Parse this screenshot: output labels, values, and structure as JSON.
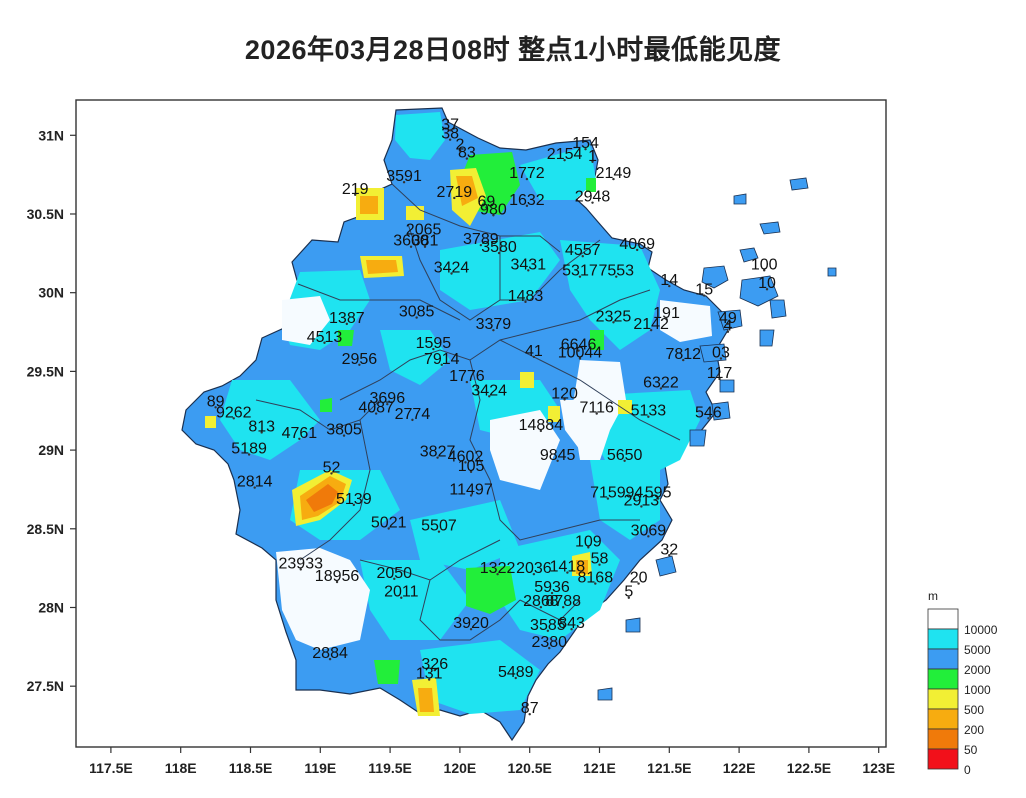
{
  "title": "2026年03月28日08时 整点1小时最低能见度",
  "map": {
    "lon_range": [
      117.25,
      123.05
    ],
    "lat_range": [
      27.12,
      31.23
    ],
    "x_ticks": [
      {
        "value": 117.5,
        "label": "117.5E"
      },
      {
        "value": 118,
        "label": "118E"
      },
      {
        "value": 118.5,
        "label": "118.5E"
      },
      {
        "value": 119,
        "label": "119E"
      },
      {
        "value": 119.5,
        "label": "119.5E"
      },
      {
        "value": 120,
        "label": "120E"
      },
      {
        "value": 120.5,
        "label": "120.5E"
      },
      {
        "value": 121,
        "label": "121E"
      },
      {
        "value": 121.5,
        "label": "121.5E"
      },
      {
        "value": 122,
        "label": "122E"
      },
      {
        "value": 122.5,
        "label": "122.5E"
      },
      {
        "value": 123,
        "label": "123E"
      }
    ],
    "y_ticks": [
      {
        "value": 31,
        "label": "31N"
      },
      {
        "value": 30.5,
        "label": "30.5N"
      },
      {
        "value": 30,
        "label": "30N"
      },
      {
        "value": 29.5,
        "label": "29.5N"
      },
      {
        "value": 29,
        "label": "29N"
      },
      {
        "value": 28.5,
        "label": "28.5N"
      },
      {
        "value": 28,
        "label": "28N"
      },
      {
        "value": 27.5,
        "label": "27.5N"
      }
    ]
  },
  "legend": {
    "unit": "m",
    "bins": [
      {
        "label": "10000",
        "color": "#ffffff"
      },
      {
        "label": "5000",
        "color": "#1fe3f0"
      },
      {
        "label": "2000",
        "color": "#3c9cf2"
      },
      {
        "label": "1000",
        "color": "#22ee3a"
      },
      {
        "label": "500",
        "color": "#f2ef34"
      },
      {
        "label": "200",
        "color": "#f7ac10"
      },
      {
        "label": "50",
        "color": "#f07a0a"
      },
      {
        "label": "0",
        "color": "#f2101a"
      }
    ]
  },
  "stations": [
    {
      "lon": 119.93,
      "lat": 31.07,
      "text": "37"
    },
    {
      "lon": 119.93,
      "lat": 31.01,
      "text": "38"
    },
    {
      "lon": 120.0,
      "lat": 30.94,
      "text": "2"
    },
    {
      "lon": 120.05,
      "lat": 30.89,
      "text": "83"
    },
    {
      "lon": 120.9,
      "lat": 30.95,
      "text": "154"
    },
    {
      "lon": 120.75,
      "lat": 30.88,
      "text": "2154"
    },
    {
      "lon": 120.95,
      "lat": 30.87,
      "text": "1"
    },
    {
      "lon": 119.6,
      "lat": 30.74,
      "text": "3591"
    },
    {
      "lon": 120.48,
      "lat": 30.76,
      "text": "1772"
    },
    {
      "lon": 121.1,
      "lat": 30.76,
      "text": "2149"
    },
    {
      "lon": 119.25,
      "lat": 30.66,
      "text": "219"
    },
    {
      "lon": 119.96,
      "lat": 30.64,
      "text": "2719"
    },
    {
      "lon": 120.19,
      "lat": 30.58,
      "text": "69"
    },
    {
      "lon": 120.24,
      "lat": 30.53,
      "text": "980"
    },
    {
      "lon": 120.48,
      "lat": 30.59,
      "text": "1632"
    },
    {
      "lon": 120.95,
      "lat": 30.61,
      "text": "2948"
    },
    {
      "lon": 119.74,
      "lat": 30.4,
      "text": "2065"
    },
    {
      "lon": 119.65,
      "lat": 30.33,
      "text": "3600"
    },
    {
      "lon": 119.75,
      "lat": 30.33,
      "text": "381"
    },
    {
      "lon": 120.15,
      "lat": 30.34,
      "text": "3789"
    },
    {
      "lon": 120.28,
      "lat": 30.29,
      "text": "3580"
    },
    {
      "lon": 120.88,
      "lat": 30.27,
      "text": "4557"
    },
    {
      "lon": 121.27,
      "lat": 30.31,
      "text": "4069"
    },
    {
      "lon": 119.94,
      "lat": 30.16,
      "text": "3424"
    },
    {
      "lon": 120.49,
      "lat": 30.18,
      "text": "3431"
    },
    {
      "lon": 120.86,
      "lat": 30.14,
      "text": "5317"
    },
    {
      "lon": 121.12,
      "lat": 30.14,
      "text": "7553"
    },
    {
      "lon": 121.5,
      "lat": 30.08,
      "text": "14"
    },
    {
      "lon": 122.18,
      "lat": 30.18,
      "text": "100"
    },
    {
      "lon": 122.2,
      "lat": 30.06,
      "text": "10"
    },
    {
      "lon": 121.75,
      "lat": 30.02,
      "text": "15"
    },
    {
      "lon": 120.47,
      "lat": 29.98,
      "text": "1483"
    },
    {
      "lon": 119.69,
      "lat": 29.88,
      "text": "3085"
    },
    {
      "lon": 121.1,
      "lat": 29.85,
      "text": "2325"
    },
    {
      "lon": 121.48,
      "lat": 29.87,
      "text": "191"
    },
    {
      "lon": 121.92,
      "lat": 29.84,
      "text": "49"
    },
    {
      "lon": 119.19,
      "lat": 29.84,
      "text": "1387"
    },
    {
      "lon": 120.24,
      "lat": 29.8,
      "text": "3379"
    },
    {
      "lon": 121.37,
      "lat": 29.8,
      "text": "2142"
    },
    {
      "lon": 121.92,
      "lat": 29.79,
      "text": "4"
    },
    {
      "lon": 119.03,
      "lat": 29.72,
      "text": "4513"
    },
    {
      "lon": 120.85,
      "lat": 29.67,
      "text": "6646"
    },
    {
      "lon": 119.81,
      "lat": 29.68,
      "text": "1595"
    },
    {
      "lon": 120.53,
      "lat": 29.63,
      "text": "41"
    },
    {
      "lon": 120.86,
      "lat": 29.62,
      "text": "10044"
    },
    {
      "lon": 121.6,
      "lat": 29.61,
      "text": "7812"
    },
    {
      "lon": 121.87,
      "lat": 29.62,
      "text": "03"
    },
    {
      "lon": 119.28,
      "lat": 29.58,
      "text": "2956"
    },
    {
      "lon": 119.87,
      "lat": 29.58,
      "text": "7914"
    },
    {
      "lon": 121.86,
      "lat": 29.49,
      "text": "117"
    },
    {
      "lon": 120.05,
      "lat": 29.47,
      "text": "1776"
    },
    {
      "lon": 121.44,
      "lat": 29.43,
      "text": "6322"
    },
    {
      "lon": 120.21,
      "lat": 29.38,
      "text": "3424"
    },
    {
      "lon": 120.75,
      "lat": 29.36,
      "text": "120"
    },
    {
      "lon": 118.25,
      "lat": 29.31,
      "text": "89"
    },
    {
      "lon": 119.48,
      "lat": 29.33,
      "text": "3696"
    },
    {
      "lon": 119.4,
      "lat": 29.27,
      "text": "4087"
    },
    {
      "lon": 120.98,
      "lat": 29.27,
      "text": "7116"
    },
    {
      "lon": 121.35,
      "lat": 29.25,
      "text": "5133"
    },
    {
      "lon": 121.78,
      "lat": 29.24,
      "text": "546"
    },
    {
      "lon": 118.38,
      "lat": 29.24,
      "text": "9262"
    },
    {
      "lon": 119.66,
      "lat": 29.23,
      "text": "2774"
    },
    {
      "lon": 120.58,
      "lat": 29.16,
      "text": "14884"
    },
    {
      "lon": 118.58,
      "lat": 29.15,
      "text": "813"
    },
    {
      "lon": 119.17,
      "lat": 29.13,
      "text": "3805"
    },
    {
      "lon": 118.85,
      "lat": 29.11,
      "text": "4761"
    },
    {
      "lon": 118.49,
      "lat": 29.01,
      "text": "5189"
    },
    {
      "lon": 119.84,
      "lat": 28.99,
      "text": "3827"
    },
    {
      "lon": 120.04,
      "lat": 28.96,
      "text": "4602"
    },
    {
      "lon": 120.7,
      "lat": 28.97,
      "text": "9845"
    },
    {
      "lon": 121.18,
      "lat": 28.97,
      "text": "5650"
    },
    {
      "lon": 120.08,
      "lat": 28.9,
      "text": "105"
    },
    {
      "lon": 119.08,
      "lat": 28.89,
      "text": "52"
    },
    {
      "lon": 118.53,
      "lat": 28.8,
      "text": "2814"
    },
    {
      "lon": 120.08,
      "lat": 28.75,
      "text": "11497"
    },
    {
      "lon": 121.06,
      "lat": 28.73,
      "text": "7159"
    },
    {
      "lon": 121.25,
      "lat": 28.73,
      "text": "94"
    },
    {
      "lon": 121.42,
      "lat": 28.73,
      "text": "595"
    },
    {
      "lon": 121.3,
      "lat": 28.68,
      "text": "2913"
    },
    {
      "lon": 119.24,
      "lat": 28.69,
      "text": "5139"
    },
    {
      "lon": 119.49,
      "lat": 28.54,
      "text": "5021"
    },
    {
      "lon": 119.85,
      "lat": 28.52,
      "text": "5507"
    },
    {
      "lon": 121.35,
      "lat": 28.49,
      "text": "3069"
    },
    {
      "lon": 120.92,
      "lat": 28.42,
      "text": "109"
    },
    {
      "lon": 121.5,
      "lat": 28.37,
      "text": "32"
    },
    {
      "lon": 121.0,
      "lat": 28.31,
      "text": "58"
    },
    {
      "lon": 118.86,
      "lat": 28.28,
      "text": "23933"
    },
    {
      "lon": 120.27,
      "lat": 28.25,
      "text": "1322"
    },
    {
      "lon": 120.53,
      "lat": 28.25,
      "text": "2036"
    },
    {
      "lon": 120.77,
      "lat": 28.26,
      "text": "1418"
    },
    {
      "lon": 119.53,
      "lat": 28.22,
      "text": "2050"
    },
    {
      "lon": 119.12,
      "lat": 28.2,
      "text": "18956"
    },
    {
      "lon": 120.97,
      "lat": 28.19,
      "text": "8168"
    },
    {
      "lon": 121.28,
      "lat": 28.19,
      "text": "20"
    },
    {
      "lon": 120.66,
      "lat": 28.13,
      "text": "5936"
    },
    {
      "lon": 119.58,
      "lat": 28.1,
      "text": "2011"
    },
    {
      "lon": 121.21,
      "lat": 28.1,
      "text": "5"
    },
    {
      "lon": 120.58,
      "lat": 28.04,
      "text": "2868"
    },
    {
      "lon": 120.74,
      "lat": 28.04,
      "text": "8788"
    },
    {
      "lon": 120.08,
      "lat": 27.9,
      "text": "3920"
    },
    {
      "lon": 120.63,
      "lat": 27.89,
      "text": "3585"
    },
    {
      "lon": 120.8,
      "lat": 27.9,
      "text": "843"
    },
    {
      "lon": 120.64,
      "lat": 27.78,
      "text": "2380"
    },
    {
      "lon": 119.07,
      "lat": 27.71,
      "text": "2884"
    },
    {
      "lon": 119.82,
      "lat": 27.64,
      "text": "326"
    },
    {
      "lon": 119.78,
      "lat": 27.58,
      "text": "131"
    },
    {
      "lon": 120.4,
      "lat": 27.59,
      "text": "5489"
    },
    {
      "lon": 120.5,
      "lat": 27.36,
      "text": "87"
    }
  ]
}
